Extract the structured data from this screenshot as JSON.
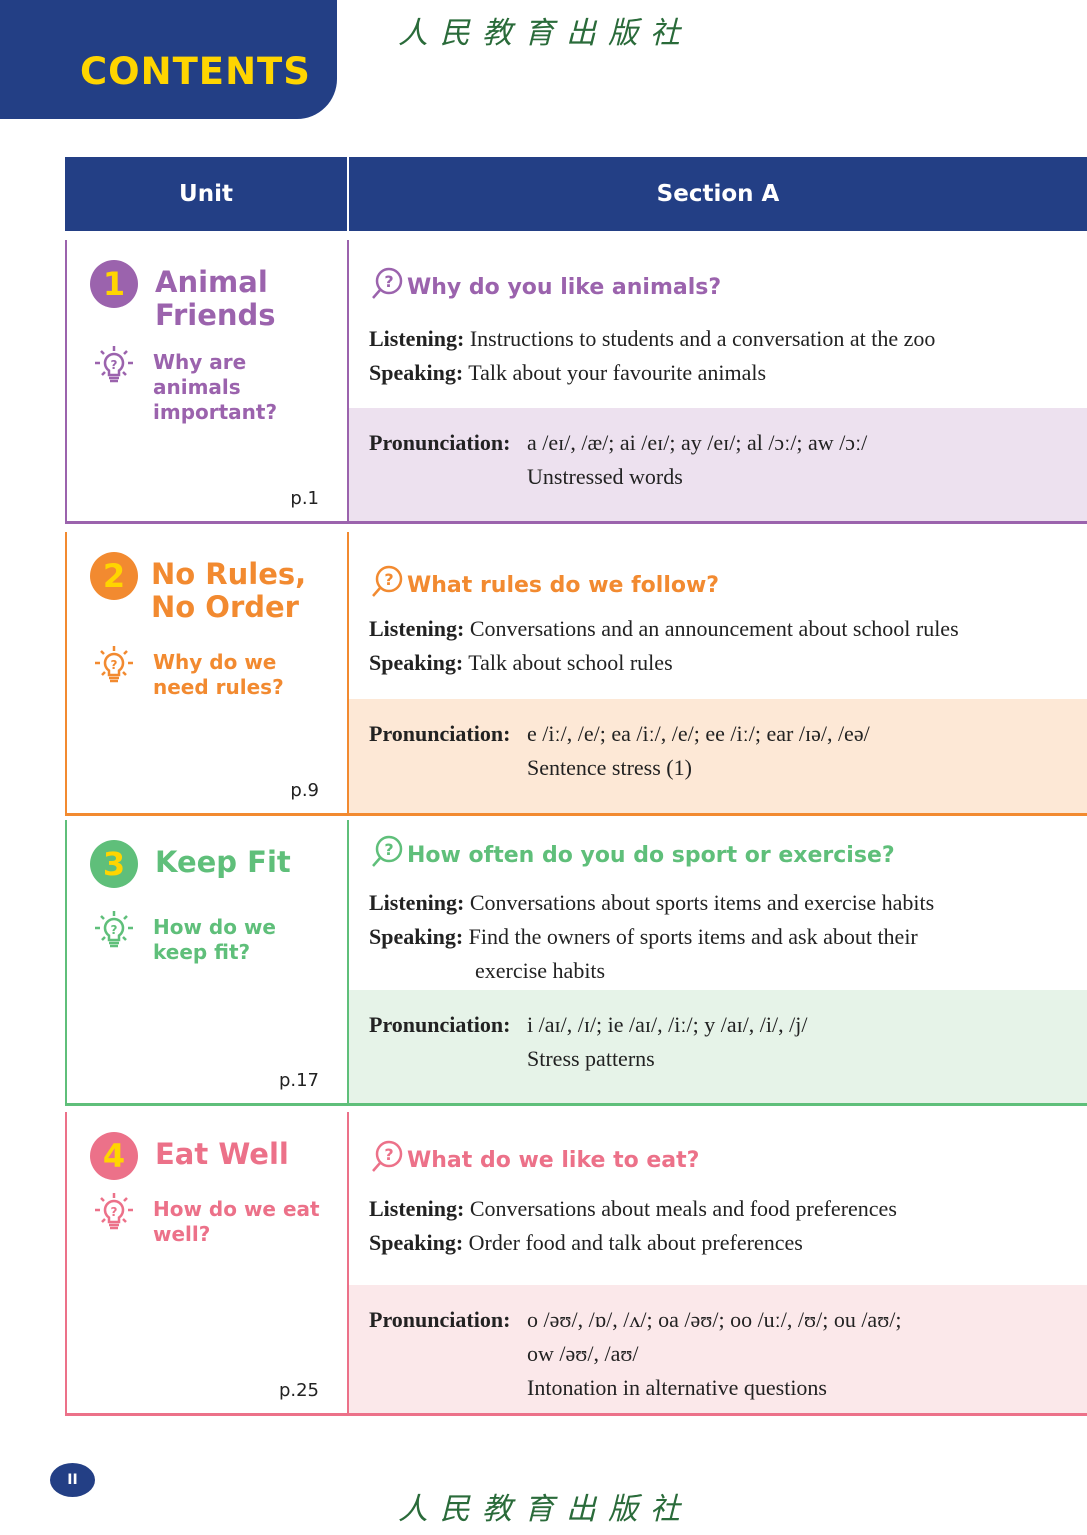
{
  "header": {
    "title": "CONTENTS",
    "publisher_logo": "人民教育出版社"
  },
  "table": {
    "col_unit": "Unit",
    "col_section": "Section A"
  },
  "units": [
    {
      "number": "1",
      "title_lines": [
        "Animal",
        "Friends"
      ],
      "big_question_lines": [
        "Why are",
        "animals",
        "important?"
      ],
      "page": "p.1",
      "color": "#9b63ad",
      "light": "#ede1ef",
      "question": "Why do you like animals?",
      "listening": "Instructions to students and a conversation at the zoo",
      "speaking_lines": [
        "Talk about your favourite animals"
      ],
      "pronunciation_lines": [
        "a /eɪ/, /æ/; ai /eɪ/; ay /eɪ/; al /ɔː/; aw /ɔː/",
        "Unstressed words"
      ]
    },
    {
      "number": "2",
      "title_lines": [
        "No Rules,",
        "No Order"
      ],
      "big_question_lines": [
        "Why do we",
        "need rules?"
      ],
      "page": "p.9",
      "color": "#f28a30",
      "light": "#fde8d6",
      "question": "What rules do we follow?",
      "listening": "Conversations and an announcement about school rules",
      "speaking_lines": [
        "Talk about school rules"
      ],
      "pronunciation_lines": [
        "e /iː/, /e/; ea /iː/, /e/; ee /iː/; ear /ɪə/, /eə/",
        "Sentence stress (1)"
      ]
    },
    {
      "number": "3",
      "title_lines": [
        "Keep Fit"
      ],
      "big_question_lines": [
        "How do we",
        "keep fit?"
      ],
      "page": "p.17",
      "color": "#5fbf7a",
      "light": "#e6f3e8",
      "question": "How often do you do sport or exercise?",
      "listening": "Conversations about sports items and exercise habits",
      "speaking_lines": [
        "Find the owners of sports items and ask about their",
        "exercise habits"
      ],
      "pronunciation_lines": [
        "i /aɪ/, /ɪ/; ie /aɪ/, /iː/; y /aɪ/, /i/, /j/",
        "Stress patterns"
      ]
    },
    {
      "number": "4",
      "title_lines": [
        "Eat Well"
      ],
      "big_question_lines": [
        "How do we eat",
        "well?"
      ],
      "page": "p.25",
      "color": "#ec7189",
      "light": "#fbe8ea",
      "question": "What do we like to eat?",
      "listening": "Conversations about meals and food preferences",
      "speaking_lines": [
        "Order food and talk about preferences"
      ],
      "pronunciation_lines": [
        "o /əʊ/, /ɒ/, /ʌ/; oa /əʊ/; oo /uː/, /ʊ/; ou /aʊ/;",
        "ow /əʊ/, /aʊ/",
        "Intonation in alternative questions"
      ]
    }
  ],
  "labels": {
    "listening": "Listening:",
    "speaking": "Speaking:",
    "pronunciation": "Pronunciation:"
  },
  "footer": {
    "page_number": "II",
    "publisher_logo": "人民教育出版社"
  }
}
